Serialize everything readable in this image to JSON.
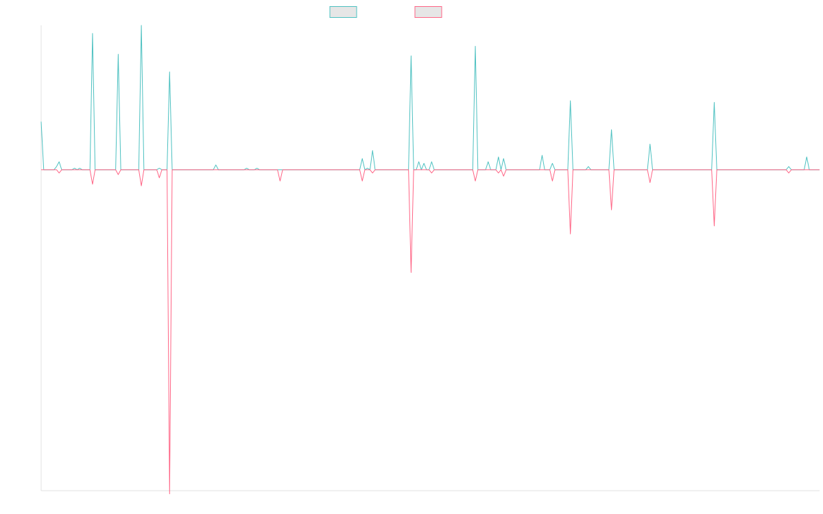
{
  "chart_data": {
    "type": "line",
    "legend_position": "top-center",
    "grid": false,
    "ylim": [
      -100,
      45
    ],
    "series": [
      {
        "color": "#4bc0c0",
        "fill": "#e6e6e6",
        "values": [
          15,
          0,
          0,
          0,
          0,
          0,
          1,
          2.5,
          0,
          0,
          0,
          0,
          0,
          0.5,
          0,
          0.5,
          0,
          0,
          0,
          0,
          42.5,
          0,
          0,
          0,
          0,
          0,
          0,
          0,
          0,
          0,
          36,
          0,
          0,
          0,
          0,
          0,
          0,
          0,
          0,
          45,
          0,
          0,
          0,
          0,
          0,
          0,
          0.5,
          0,
          0,
          0,
          30.5,
          0,
          0,
          0,
          0,
          0,
          0,
          0,
          0,
          0,
          0,
          0,
          0,
          0,
          0,
          0,
          0,
          0,
          1.5,
          0,
          0,
          0,
          0,
          0,
          0,
          0,
          0,
          0,
          0,
          0,
          0.5,
          0,
          0,
          0,
          0.5,
          0,
          0,
          0,
          0,
          0,
          0,
          0,
          0,
          0,
          0,
          0,
          0,
          0,
          0,
          0,
          0,
          0,
          0,
          0,
          0,
          0,
          0,
          0,
          0,
          0,
          0,
          0,
          0,
          0,
          0,
          0,
          0,
          0,
          0,
          0,
          0,
          0,
          0,
          0,
          0,
          3.5,
          0,
          0.5,
          0,
          6,
          0,
          0,
          0,
          0,
          0,
          0,
          0,
          0,
          0,
          0,
          0,
          0,
          0,
          0,
          35.5,
          0,
          0,
          2.5,
          0,
          2,
          0,
          0,
          2.5,
          0,
          0,
          0,
          0,
          0,
          0,
          0,
          0,
          0,
          0,
          0,
          0,
          0,
          0,
          0,
          0,
          38.5,
          0,
          0,
          0,
          0,
          2.5,
          0,
          0,
          0,
          4,
          0,
          3.5,
          0,
          0,
          0,
          0,
          0,
          0,
          0,
          0,
          0,
          0,
          0,
          0,
          0,
          0,
          4.5,
          0,
          0,
          0,
          2,
          0,
          0,
          0,
          0,
          0,
          0,
          21.5,
          0,
          0,
          0,
          0,
          0,
          0,
          1,
          0,
          0,
          0,
          0,
          0,
          0,
          0,
          0,
          12.5,
          0,
          0,
          0,
          0,
          0,
          0,
          0,
          0,
          0,
          0,
          0,
          0,
          0,
          0,
          8,
          0,
          0,
          0,
          0,
          0,
          0,
          0,
          0,
          0,
          0,
          0,
          0,
          0,
          0,
          0,
          0,
          0,
          0,
          0,
          0,
          0,
          0,
          0,
          0,
          21,
          0,
          0,
          0,
          0,
          0,
          0,
          0,
          0,
          0,
          0,
          0,
          0,
          0,
          0,
          0,
          0,
          0,
          0,
          0,
          0,
          0,
          0,
          0,
          0,
          0,
          0,
          0,
          0,
          1,
          0,
          0,
          0,
          0,
          0,
          0,
          4,
          0,
          0,
          0,
          0,
          0
        ]
      },
      {
        "color": "#ff6384",
        "fill": "#e6e6e6",
        "values": [
          0,
          0,
          0,
          0,
          0,
          0,
          0,
          -1,
          0,
          0,
          0,
          0,
          0,
          0,
          0,
          0,
          0,
          0,
          0,
          0,
          -4.5,
          0,
          0,
          0,
          0,
          0,
          0,
          0,
          0,
          0,
          -1.5,
          0,
          0,
          0,
          0,
          0,
          0,
          0,
          0,
          -5,
          0,
          0,
          0,
          0,
          0,
          0,
          -2.5,
          0,
          0,
          0,
          -101,
          0,
          0,
          0,
          0,
          0,
          0,
          0,
          0,
          0,
          0,
          0,
          0,
          0,
          0,
          0,
          0,
          0,
          0,
          0,
          0,
          0,
          0,
          0,
          0,
          0,
          0,
          0,
          0,
          0,
          0,
          0,
          0,
          0,
          0,
          0,
          0,
          0,
          0,
          0,
          0,
          0,
          0,
          -3.5,
          0,
          0,
          0,
          0,
          0,
          0,
          0,
          0,
          0,
          0,
          0,
          0,
          0,
          0,
          0,
          0,
          0,
          0,
          0,
          0,
          0,
          0,
          0,
          0,
          0,
          0,
          0,
          0,
          0,
          0,
          0,
          -3.5,
          0,
          0,
          0,
          -1,
          0,
          0,
          0,
          0,
          0,
          0,
          0,
          0,
          0,
          0,
          0,
          0,
          0,
          0,
          -32,
          0,
          0,
          0,
          0,
          0,
          0,
          0,
          -1,
          0,
          0,
          0,
          0,
          0,
          0,
          0,
          0,
          0,
          0,
          0,
          0,
          0,
          0,
          0,
          0,
          -3.5,
          0,
          0,
          0,
          0,
          0,
          0,
          0,
          0,
          -1,
          0,
          -2,
          0,
          0,
          0,
          0,
          0,
          0,
          0,
          0,
          0,
          0,
          0,
          0,
          0,
          0,
          0,
          0,
          0,
          0,
          -3.5,
          0,
          0,
          0,
          0,
          0,
          0,
          -20,
          0,
          0,
          0,
          0,
          0,
          0,
          0,
          0,
          0,
          0,
          0,
          0,
          0,
          0,
          0,
          -12.5,
          0,
          0,
          0,
          0,
          0,
          0,
          0,
          0,
          0,
          0,
          0,
          0,
          0,
          0,
          -4,
          0,
          0,
          0,
          0,
          0,
          0,
          0,
          0,
          0,
          0,
          0,
          0,
          0,
          0,
          0,
          0,
          0,
          0,
          0,
          0,
          0,
          0,
          0,
          0,
          -17.5,
          0,
          0,
          0,
          0,
          0,
          0,
          0,
          0,
          0,
          0,
          0,
          0,
          0,
          0,
          0,
          0,
          0,
          0,
          0,
          0,
          0,
          0,
          0,
          0,
          0,
          0,
          0,
          0,
          -1,
          0,
          0,
          0,
          0,
          0,
          0,
          0,
          0,
          0,
          0,
          0,
          0
        ]
      }
    ]
  }
}
